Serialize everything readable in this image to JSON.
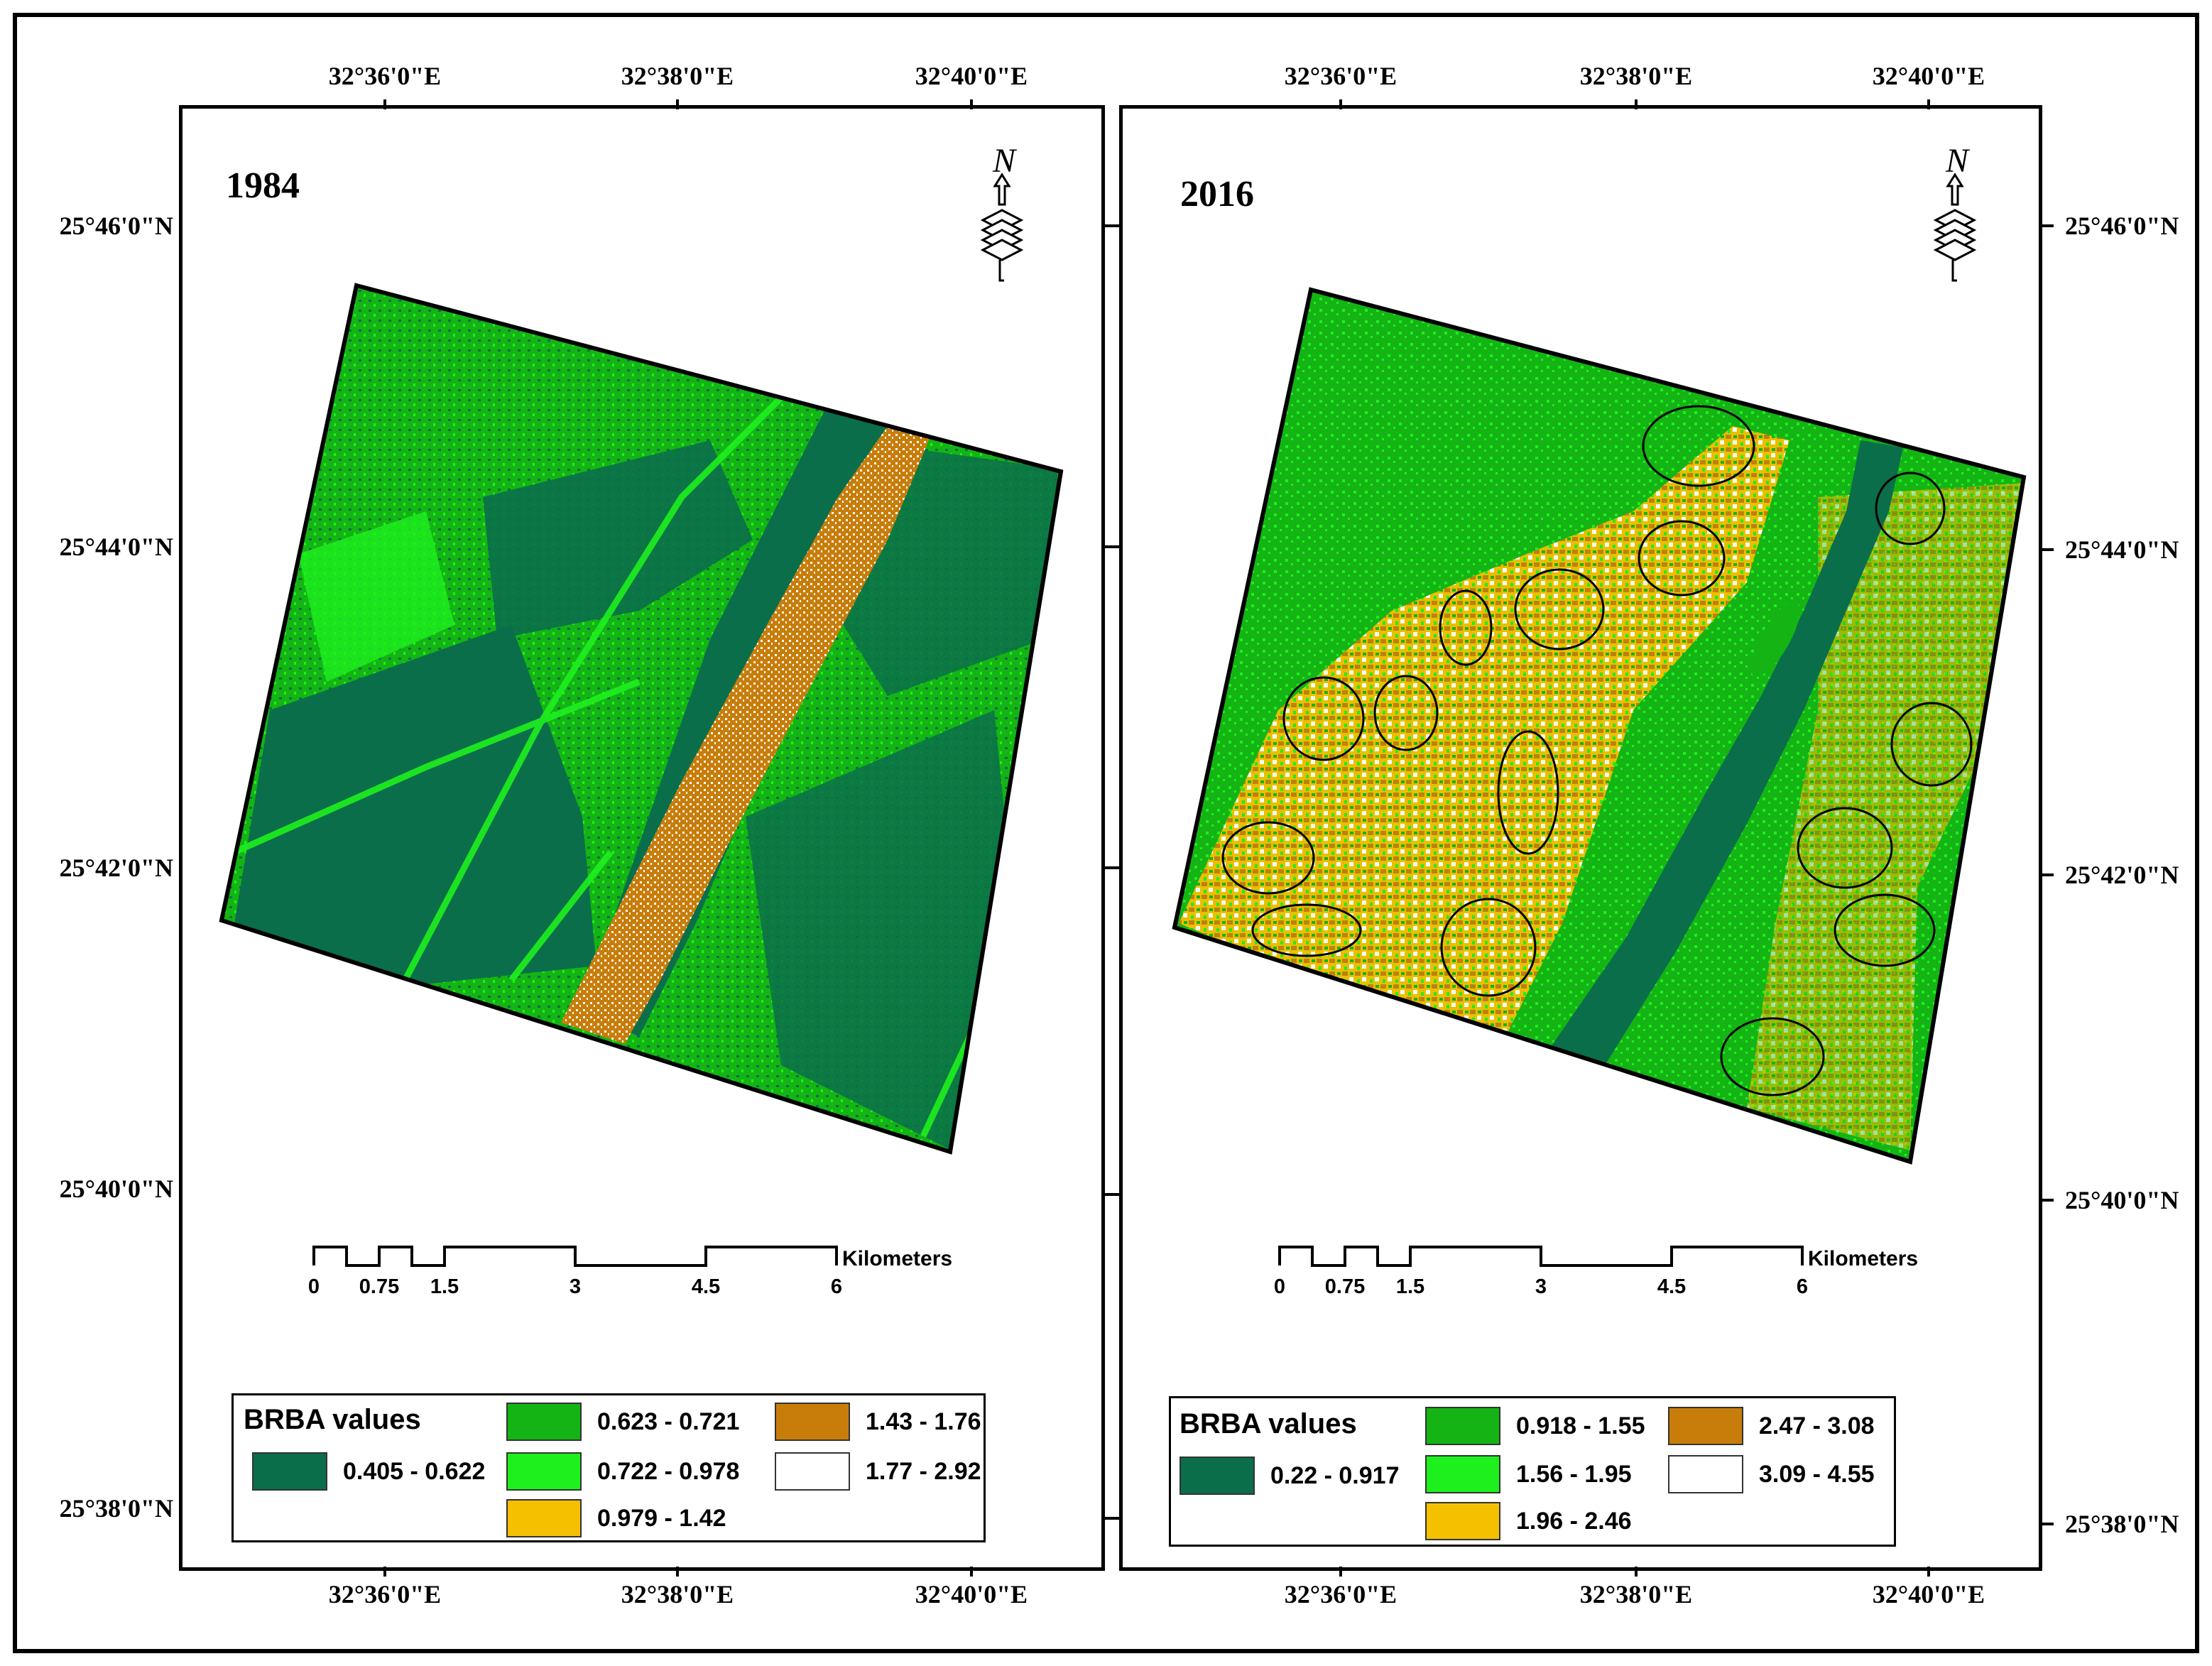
{
  "figure": {
    "panels": [
      {
        "year": "1984",
        "top_labels": [
          "32°36'0\"E",
          "32°38'0\"E",
          "32°40'0\"E"
        ],
        "bottom_labels": [
          "32°36'0\"E",
          "32°38'0\"E",
          "32°40'0\"E"
        ],
        "side_labels": [
          "25°46'0\"N",
          "25°44'0\"N",
          "25°42'0\"N",
          "25°40'0\"N",
          "25°38'0\"N"
        ],
        "north_letter": "N",
        "scale": {
          "labels": [
            "0",
            "0.75",
            "1.5",
            "3",
            "4.5",
            "6"
          ],
          "unit": "Kilometers"
        },
        "legend": {
          "title": "BRBA values",
          "classes": [
            {
              "label": "0.405 - 0.622",
              "color": "#0a6e4a"
            },
            {
              "label": "0.623 - 0.721",
              "color": "#14b414"
            },
            {
              "label": "0.722 - 0.978",
              "color": "#1ef01e"
            },
            {
              "label": "0.979 - 1.42",
              "color": "#f5c000"
            },
            {
              "label": "1.43 - 1.76",
              "color": "#c87d0a"
            },
            {
              "label": "1.77 - 2.92",
              "color": "#ffffff"
            }
          ]
        }
      },
      {
        "year": "2016",
        "top_labels": [
          "32°36'0\"E",
          "32°38'0\"E",
          "32°40'0\"E"
        ],
        "bottom_labels": [
          "32°36'0\"E",
          "32°38'0\"E",
          "32°40'0\"E"
        ],
        "side_labels": [
          "25°46'0\"N",
          "25°44'0\"N",
          "25°42'0\"N",
          "25°40'0\"N",
          "25°38'0\"N"
        ],
        "north_letter": "N",
        "scale": {
          "labels": [
            "0",
            "0.75",
            "1.5",
            "3",
            "4.5",
            "6"
          ],
          "unit": "Kilometers"
        },
        "legend": {
          "title": "BRBA values",
          "classes": [
            {
              "label": "0.22 - 0.917",
              "color": "#0a6e4a"
            },
            {
              "label": "0.918 - 1.55",
              "color": "#14b414"
            },
            {
              "label": "1.56 - 1.95",
              "color": "#1ef01e"
            },
            {
              "label": "1.96 - 2.46",
              "color": "#f5c000"
            },
            {
              "label": "2.47 - 3.08",
              "color": "#c87d0a"
            },
            {
              "label": "3.09 - 4.55",
              "color": "#ffffff"
            }
          ]
        }
      }
    ]
  }
}
